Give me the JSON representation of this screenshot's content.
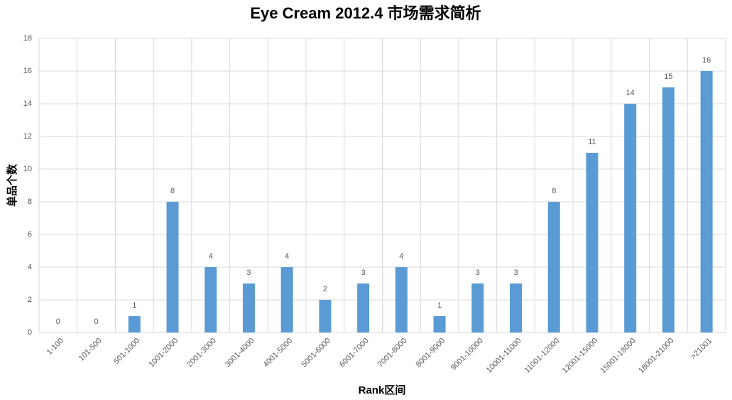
{
  "chart_data": {
    "type": "bar",
    "title": "Eye Cream 2012.4 市场需求简析",
    "x_label": "Rank区间",
    "y_label": "单品个数",
    "categories": [
      "1-100",
      "101-500",
      "501-1000",
      "1001-2000",
      "2001-3000",
      "3001-4000",
      "4001-5000",
      "5001-6000",
      "6001-7000",
      "7001-8000",
      "8001-9000",
      "9001-10000",
      "10001-11000",
      "11001-12000",
      "12001-15000",
      "15001-18000",
      "18001-21000",
      ">21001"
    ],
    "values": [
      0,
      0,
      1,
      8,
      4,
      3,
      4,
      2,
      3,
      4,
      1,
      3,
      3,
      8,
      11,
      14,
      15,
      16
    ],
    "color": "#5b9bd5",
    "ylim": [
      0,
      18
    ],
    "yticks": [
      0,
      2,
      4,
      6,
      8,
      10,
      12,
      14,
      16,
      18
    ],
    "grid": true
  }
}
